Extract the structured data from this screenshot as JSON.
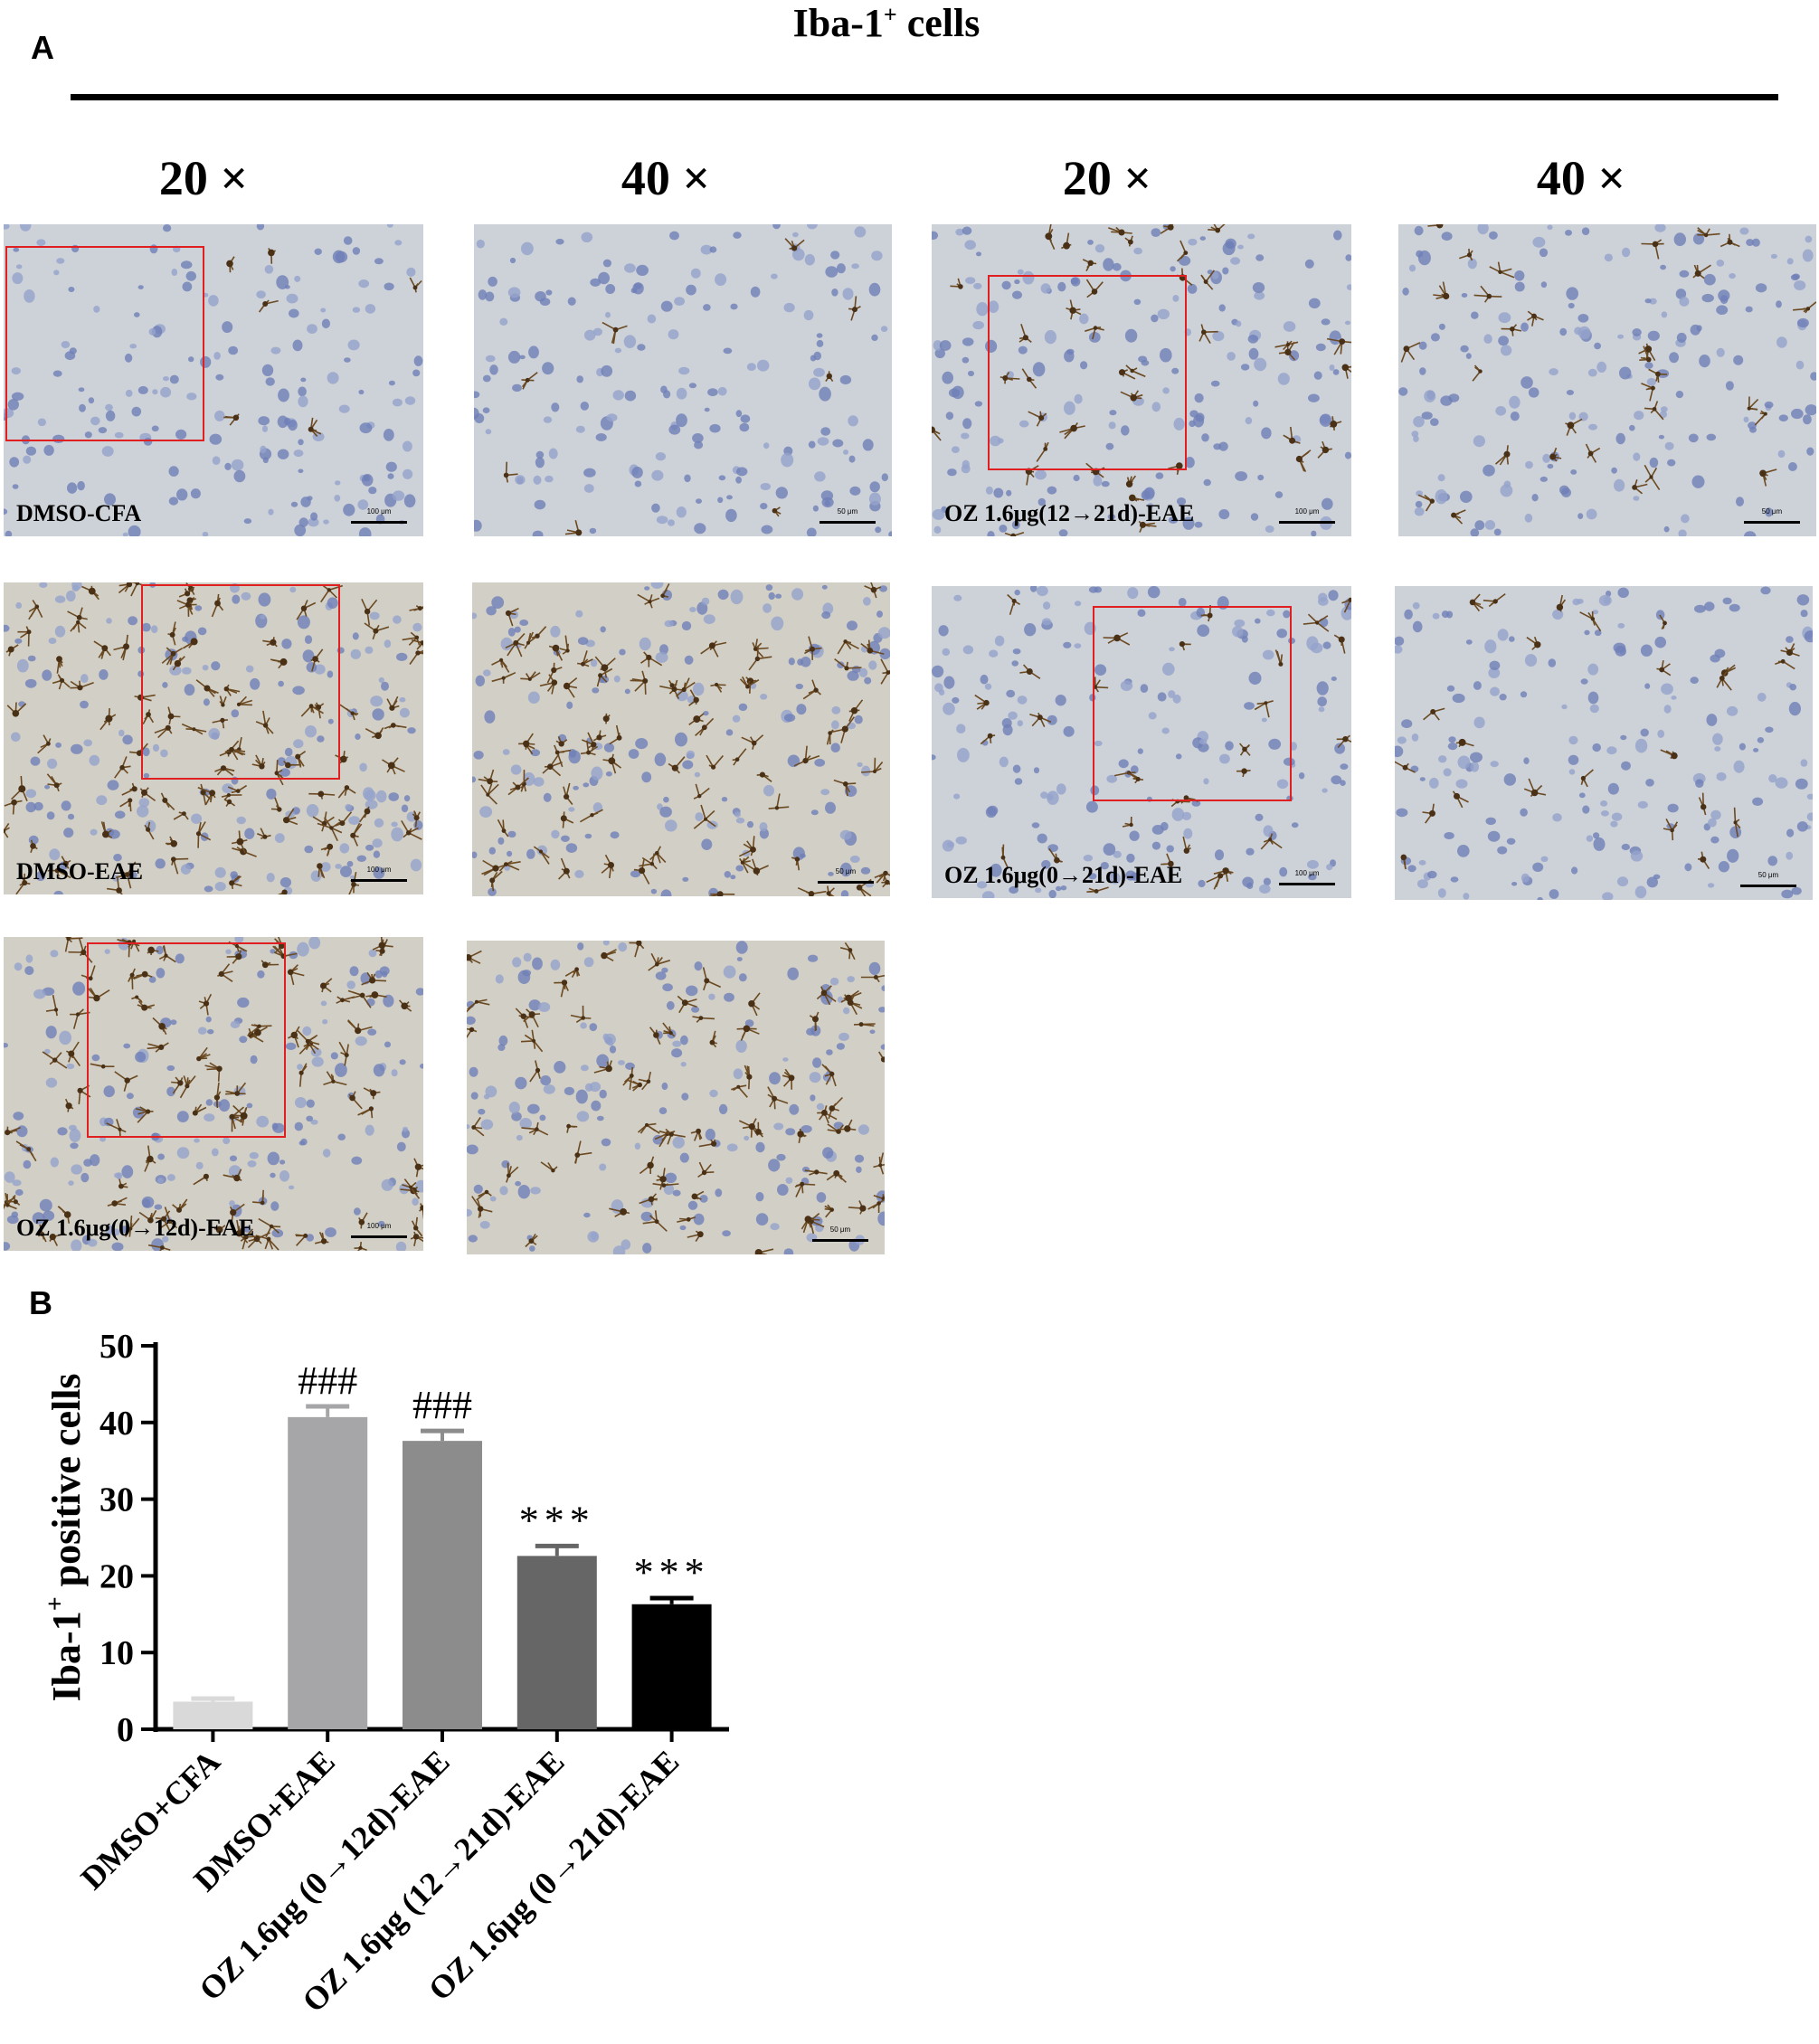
{
  "panel_a_label": "A",
  "panel_b_label": "B",
  "header": {
    "title_main": "Iba-1",
    "title_sup": "+",
    "title_tail": " cells"
  },
  "magnifications": [
    "20 ×",
    "40 ×",
    "20 ×",
    "40 ×"
  ],
  "micrographs": [
    {
      "label": "DMSO-CFA",
      "scale": "100 μm"
    },
    {
      "label": "",
      "scale": "50 μm"
    },
    {
      "label": "OZ 1.6μg(12→21d)-EAE",
      "scale": "100 μm"
    },
    {
      "label": "",
      "scale": "50 μm"
    },
    {
      "label": "DMSO-EAE",
      "scale": "100 μm"
    },
    {
      "label": "",
      "scale": "50 μm"
    },
    {
      "label": "OZ 1.6μg(0→21d)-EAE",
      "scale": "100 μm"
    },
    {
      "label": "",
      "scale": "50 μm"
    },
    {
      "label": "OZ 1.6μg(0→12d)-EAE",
      "scale": "100 μm"
    },
    {
      "label": "",
      "scale": "50 μm"
    }
  ],
  "chart_data": {
    "type": "bar",
    "categories": [
      "DMSO+CFA",
      "DMSO+EAE",
      "OZ 1.6μg (0→12d)-EAE",
      "OZ 1.6μg (12→21d)-EAE",
      "OZ 1.6μg (0→21d)-EAE"
    ],
    "values": [
      3.6,
      40.7,
      37.6,
      22.6,
      16.3
    ],
    "errors": [
      0.4,
      1.4,
      1.3,
      1.3,
      0.8
    ],
    "annotations": [
      "",
      "###",
      "###",
      "***",
      "***"
    ],
    "colors": [
      "#d9d9d9",
      "#a6a6a8",
      "#8c8c8c",
      "#666666",
      "#000000"
    ],
    "ylabel_main": "Iba-1",
    "ylabel_sup": "+",
    "ylabel_tail": " positive cells",
    "yticks": [
      0,
      10,
      20,
      30,
      40,
      50
    ],
    "ylim": [
      0,
      50
    ]
  }
}
